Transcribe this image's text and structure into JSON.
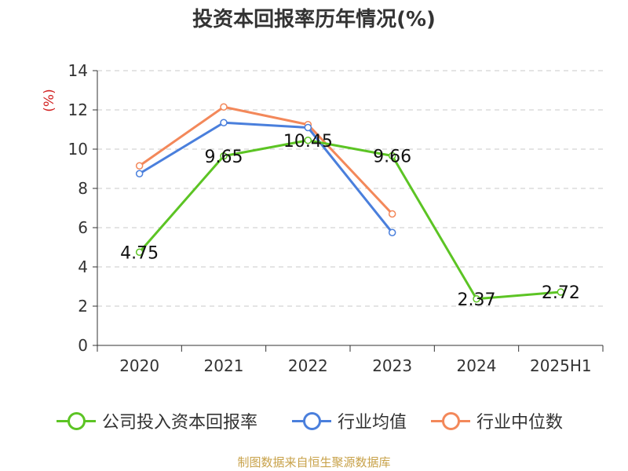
{
  "title": "投资本回报率历年情况(%)",
  "source": "制图数据来自恒生聚源数据库",
  "chart_data": {
    "type": "line",
    "title": "投资本回报率历年情况(%)",
    "ylabel": "(%)",
    "xlabel": "",
    "categories": [
      "2020",
      "2021",
      "2022",
      "2023",
      "2024",
      "2025H1"
    ],
    "ylim": [
      0,
      14
    ],
    "yticks": [
      0,
      2,
      4,
      6,
      8,
      10,
      12,
      14
    ],
    "grid": true,
    "legend_position": "bottom",
    "series": [
      {
        "name": "公司投入资本回报率",
        "color": "#5cc424",
        "values": [
          4.75,
          9.65,
          10.45,
          9.66,
          2.37,
          2.72
        ],
        "labels": [
          "4.75",
          "9.65",
          "10.45",
          "9.66",
          "2.37",
          "2.72"
        ]
      },
      {
        "name": "行业均值",
        "color": "#4a7fdc",
        "values": [
          8.75,
          11.35,
          11.1,
          5.75,
          null,
          null
        ]
      },
      {
        "name": "行业中位数",
        "color": "#f3885a",
        "values": [
          9.15,
          12.15,
          11.25,
          6.7,
          null,
          null
        ]
      }
    ]
  }
}
